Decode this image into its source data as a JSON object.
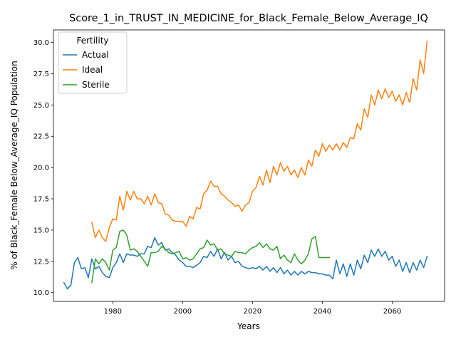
{
  "chart_data": {
    "type": "line",
    "title": "Score_1_in_TRUST_IN_MEDICINE_for_Black_Female_Below_Average_IQ",
    "xlabel": "Years",
    "ylabel": "% of Black_Female Below_Average_IQ Population",
    "xlim": [
      1963,
      2075
    ],
    "ylim": [
      9.3,
      31.0
    ],
    "xticks": [
      1980,
      2000,
      2020,
      2040,
      2060
    ],
    "yticks": [
      10.0,
      12.5,
      15.0,
      17.5,
      20.0,
      22.5,
      25.0,
      27.5,
      30.0
    ],
    "grid": false,
    "legend": {
      "title": "Fertility",
      "placement": "top-left"
    },
    "series": [
      {
        "name": "Actual",
        "color": "#1f77b4",
        "x": [
          1966,
          1967,
          1968,
          1969,
          1970,
          1971,
          1972,
          1973,
          1974,
          1975,
          1976,
          1977,
          1978,
          1979,
          1980,
          1981,
          1982,
          1983,
          1984,
          1985,
          1986,
          1987,
          1988,
          1989,
          1990,
          1991,
          1992,
          1993,
          1994,
          1995,
          1996,
          1997,
          1998,
          1999,
          2000,
          2001,
          2002,
          2003,
          2004,
          2005,
          2006,
          2007,
          2008,
          2009,
          2010,
          2011,
          2012,
          2013,
          2014,
          2015,
          2016,
          2017,
          2018,
          2019,
          2020,
          2021,
          2022,
          2023,
          2024,
          2025,
          2026,
          2027,
          2028,
          2029,
          2030,
          2031,
          2032,
          2033,
          2034,
          2035,
          2036,
          2037,
          2038,
          2039,
          2040,
          2041,
          2042,
          2043,
          2044,
          2045,
          2046,
          2047,
          2048,
          2049,
          2050,
          2051,
          2052,
          2053,
          2054,
          2055,
          2056,
          2057,
          2058,
          2059,
          2060,
          2061,
          2062,
          2063,
          2064,
          2065,
          2066,
          2067,
          2068,
          2069,
          2070
        ],
        "y": [
          10.8,
          10.3,
          10.6,
          12.4,
          12.8,
          11.9,
          12.0,
          11.2,
          12.7,
          11.9,
          12.1,
          11.6,
          11.3,
          11.2,
          12.0,
          12.4,
          13.1,
          12.4,
          13.1,
          13.0,
          13.0,
          12.9,
          13.1,
          13.1,
          13.7,
          13.6,
          14.4,
          13.8,
          14.0,
          13.4,
          13.5,
          13.2,
          13.0,
          12.6,
          12.4,
          12.1,
          12.1,
          12.0,
          12.2,
          12.4,
          12.9,
          12.8,
          13.3,
          12.9,
          13.5,
          12.7,
          13.2,
          12.6,
          12.9,
          12.4,
          12.5,
          12.1,
          12.0,
          11.9,
          12.0,
          11.9,
          12.1,
          11.8,
          12.1,
          11.7,
          12.0,
          11.6,
          12.0,
          11.5,
          11.8,
          11.4,
          11.7,
          11.4,
          11.7,
          11.5,
          11.7,
          11.6,
          11.6,
          11.5,
          11.5,
          11.4,
          11.4,
          11.1,
          12.6,
          11.5,
          12.3,
          11.3,
          12.3,
          11.4,
          12.6,
          11.9,
          13.0,
          12.4,
          13.4,
          12.9,
          13.5,
          12.9,
          13.3,
          12.6,
          12.9,
          12.1,
          12.6,
          11.7,
          12.4,
          11.6,
          12.4,
          11.8,
          12.6,
          12.0,
          12.9
        ]
      },
      {
        "name": "Ideal",
        "color": "#ff7f0e",
        "x": [
          1974,
          1975,
          1976,
          1977,
          1978,
          1979,
          1980,
          1981,
          1982,
          1983,
          1984,
          1985,
          1986,
          1987,
          1988,
          1989,
          1990,
          1991,
          1992,
          1993,
          1994,
          1995,
          1996,
          1997,
          1998,
          1999,
          2000,
          2001,
          2002,
          2003,
          2004,
          2005,
          2006,
          2007,
          2008,
          2009,
          2010,
          2011,
          2012,
          2013,
          2014,
          2015,
          2016,
          2017,
          2018,
          2019,
          2020,
          2021,
          2022,
          2023,
          2024,
          2025,
          2026,
          2027,
          2028,
          2029,
          2030,
          2031,
          2032,
          2033,
          2034,
          2035,
          2036,
          2037,
          2038,
          2039,
          2040,
          2041,
          2042,
          2043,
          2044,
          2045,
          2046,
          2047,
          2048,
          2049,
          2050,
          2051,
          2052,
          2053,
          2054,
          2055,
          2056,
          2057,
          2058,
          2059,
          2060,
          2061,
          2062,
          2063,
          2064,
          2065,
          2066,
          2067,
          2068,
          2069,
          2070
        ],
        "y": [
          15.6,
          14.4,
          15.0,
          14.4,
          14.1,
          15.2,
          15.9,
          15.8,
          17.7,
          16.6,
          18.1,
          17.4,
          18.1,
          17.5,
          17.5,
          17.1,
          17.7,
          17.0,
          17.9,
          17.2,
          17.1,
          16.3,
          16.2,
          15.8,
          15.7,
          15.7,
          15.7,
          15.3,
          16.1,
          15.9,
          16.8,
          16.7,
          17.9,
          18.2,
          18.9,
          18.5,
          18.5,
          17.9,
          17.7,
          17.4,
          17.2,
          16.9,
          17.0,
          16.5,
          17.0,
          17.2,
          18.1,
          18.4,
          19.3,
          18.6,
          19.8,
          18.8,
          20.1,
          19.4,
          20.4,
          19.7,
          20.1,
          19.4,
          19.8,
          19.2,
          20.0,
          19.4,
          20.6,
          20.1,
          21.4,
          20.9,
          21.9,
          21.3,
          21.8,
          21.4,
          21.9,
          21.4,
          22.0,
          21.6,
          22.4,
          22.3,
          23.5,
          23.0,
          24.7,
          24.0,
          25.8,
          25.0,
          26.2,
          25.5,
          26.3,
          25.6,
          26.1,
          25.3,
          25.8,
          25.0,
          26.0,
          25.2,
          27.1,
          26.2,
          28.6,
          27.5,
          30.1
        ]
      },
      {
        "name": "Sterile",
        "color": "#2ca02c",
        "x": [
          1974,
          1975,
          1976,
          1977,
          1978,
          1979,
          1980,
          1981,
          1982,
          1983,
          1984,
          1985,
          1986,
          1987,
          1988,
          1989,
          1990,
          1991,
          1992,
          1993,
          1994,
          1995,
          1996,
          1997,
          1998,
          1999,
          2000,
          2001,
          2002,
          2003,
          2004,
          2005,
          2006,
          2007,
          2008,
          2009,
          2010,
          2011,
          2012,
          2013,
          2014,
          2015,
          2016,
          2017,
          2018,
          2019,
          2020,
          2021,
          2022,
          2023,
          2024,
          2025,
          2026,
          2027,
          2028,
          2029,
          2030,
          2031,
          2032,
          2033,
          2034,
          2035,
          2036,
          2037,
          2038,
          2039,
          2040,
          2041,
          2042
        ],
        "y": [
          10.8,
          12.7,
          12.3,
          12.7,
          12.4,
          11.8,
          13.4,
          13.6,
          14.9,
          15.0,
          14.6,
          13.4,
          13.5,
          13.3,
          12.9,
          12.5,
          12.1,
          13.2,
          13.2,
          13.3,
          13.7,
          13.5,
          13.2,
          13.1,
          13.2,
          13.3,
          12.7,
          12.8,
          12.6,
          12.7,
          13.1,
          13.5,
          13.6,
          14.2,
          13.8,
          13.9,
          13.4,
          13.5,
          13.1,
          13.0,
          12.9,
          13.3,
          13.2,
          13.2,
          13.1,
          13.4,
          13.6,
          13.7,
          14.0,
          13.6,
          13.9,
          13.5,
          13.4,
          13.7,
          12.7,
          13.0,
          12.6,
          12.4,
          13.1,
          12.6,
          12.3,
          12.6,
          13.1,
          14.3,
          14.5,
          12.8,
          12.8,
          12.8,
          12.8
        ]
      }
    ]
  }
}
